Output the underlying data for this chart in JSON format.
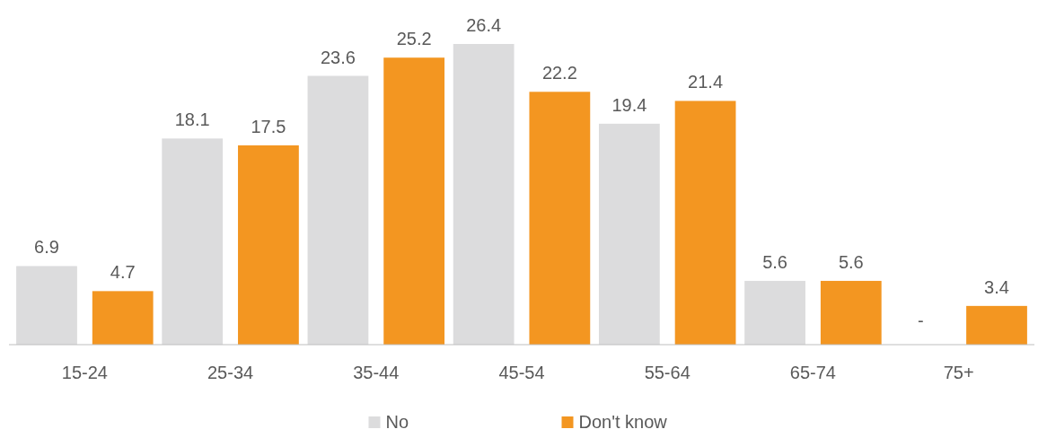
{
  "chart_data": {
    "type": "bar",
    "categories": [
      "15-24",
      "25-34",
      "35-44",
      "45-54",
      "55-64",
      "65-74",
      "75+"
    ],
    "series": [
      {
        "name": "No",
        "color": "#dcdcdd",
        "values": [
          6.9,
          18.1,
          23.6,
          26.4,
          19.4,
          5.6,
          null
        ],
        "value_labels": [
          "6.9",
          "18.1",
          "23.6",
          "26.4",
          "19.4",
          "5.6",
          "-"
        ]
      },
      {
        "name": "Don't know",
        "color": "#f39621",
        "values": [
          4.7,
          17.5,
          25.2,
          22.2,
          21.4,
          5.6,
          3.4
        ],
        "value_labels": [
          "4.7",
          "17.5",
          "25.2",
          "22.2",
          "21.4",
          "5.6",
          "3.4"
        ]
      }
    ],
    "legend": "bottom"
  }
}
